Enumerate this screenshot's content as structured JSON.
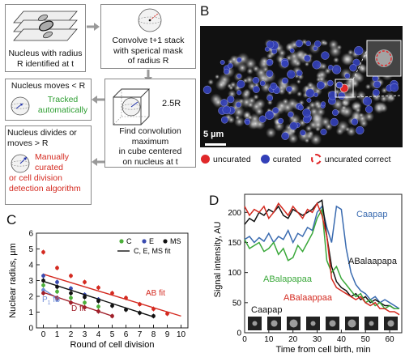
{
  "panels": {
    "a": "A",
    "b": "B",
    "c": "C",
    "d": "D"
  },
  "flow": {
    "box1": [
      "Nucleus with radius",
      "R identified at t"
    ],
    "box2": [
      "Convolve t+1 stack",
      "with sperical mask",
      "of radius R"
    ],
    "box3_title": "Nucleus moves < R",
    "box3_status": [
      "Tracked",
      "automatically"
    ],
    "box4_dim": "2.5R",
    "box4_text": [
      "Find convolution",
      "maximum",
      "in cube centered",
      "on nucleus at t"
    ],
    "box5_title": [
      "Nucleus divides or",
      "moves > R"
    ],
    "box5_status": [
      "Manually",
      "curated",
      "or cell division",
      "detection algorithm"
    ]
  },
  "micrograph": {
    "scale_label": "5 µm",
    "legend": {
      "uncurated": "uncurated",
      "curated": "curated",
      "uncurated_correct": "uncurated correct"
    },
    "colors": {
      "uncurated": "#e0282a",
      "curated": "#3340b8"
    }
  },
  "chart_data": [
    {
      "type": "scatter",
      "xlabel": "Round of cell division",
      "ylabel": "Nuclear radius, µm",
      "xlim": [
        -0.5,
        10.5
      ],
      "ylim": [
        0,
        6
      ],
      "xticks": [
        0,
        1,
        2,
        3,
        4,
        5,
        6,
        7,
        8,
        9,
        10
      ],
      "yticks": [
        0,
        1,
        2,
        3,
        4,
        5,
        6
      ],
      "legend": {
        "c": "C",
        "e": "E",
        "ms": "MS",
        "fit": "C, E, MS fit"
      },
      "annotations": {
        "ab_fit": "AB fit",
        "p_fit": "P",
        "p_sub": "1",
        "p_fit_suffix": " fit",
        "d_fit": "D fit"
      },
      "series": [
        {
          "name": "AB",
          "color": "#d42a20",
          "x": [
            0,
            1,
            2,
            3,
            4,
            5,
            6,
            7,
            8,
            9
          ],
          "y": [
            4.8,
            3.8,
            3.3,
            2.9,
            2.55,
            2.2,
            1.9,
            1.5,
            1.2,
            0.9
          ],
          "fit": [
            [
              0,
              3.4
            ],
            [
              10,
              0.75
            ]
          ]
        },
        {
          "name": "C",
          "color": "#4caf3a",
          "x": [
            0,
            1,
            2,
            3,
            4
          ],
          "y": [
            2.7,
            2.3,
            1.9,
            1.6,
            1.35
          ]
        },
        {
          "name": "E",
          "color": "#3a4bb0",
          "x": [
            0,
            1,
            2,
            3,
            4
          ],
          "y": [
            3.3,
            2.9,
            2.5,
            2.1,
            1.8
          ]
        },
        {
          "name": "MS",
          "color": "#111111",
          "x": [
            0,
            1,
            2,
            3,
            4,
            5,
            6,
            7,
            8
          ],
          "y": [
            3.0,
            2.6,
            2.2,
            1.95,
            1.7,
            1.4,
            1.15,
            0.95,
            0.75
          ],
          "fit": [
            [
              0,
              2.95
            ],
            [
              8,
              0.7
            ]
          ]
        },
        {
          "name": "P",
          "color": "#6d8bd6",
          "x": [
            0,
            1
          ],
          "y": [
            2.4,
            1.8
          ],
          "fit": [
            [
              0,
              2.45
            ],
            [
              1.2,
              1.75
            ]
          ]
        },
        {
          "name": "D",
          "color": "#a0202a",
          "x": [
            0,
            1,
            2,
            3,
            4,
            5
          ],
          "y": [
            2.2,
            1.9,
            1.6,
            1.3,
            1.05,
            0.75
          ],
          "fit": [
            [
              0,
              2.25
            ],
            [
              5,
              0.75
            ]
          ]
        }
      ]
    },
    {
      "type": "line",
      "xlabel": "Time from cell birth, min",
      "ylabel": "Signal intensity, AU",
      "xlim": [
        0,
        65
      ],
      "ylim": [
        0,
        230
      ],
      "xticks": [
        0,
        10,
        20,
        30,
        40,
        50,
        60
      ],
      "yticks": [
        0,
        50,
        100,
        150,
        200
      ],
      "series": [
        {
          "name": "Caapap",
          "color": "#3a6bb0",
          "x": [
            0,
            2,
            4,
            6,
            8,
            10,
            12,
            14,
            16,
            18,
            20,
            22,
            24,
            26,
            28,
            30,
            32,
            34,
            36,
            38,
            40,
            42,
            44,
            46,
            48,
            50,
            52,
            54,
            56,
            58,
            60,
            62,
            64
          ],
          "y": [
            155,
            160,
            150,
            158,
            152,
            165,
            150,
            160,
            155,
            170,
            150,
            165,
            160,
            175,
            170,
            200,
            210,
            175,
            150,
            210,
            205,
            140,
            100,
            80,
            70,
            65,
            55,
            60,
            50,
            55,
            50,
            45,
            40
          ]
        },
        {
          "name": "ABalaapapa",
          "color": "#111111",
          "x": [
            0,
            2,
            4,
            6,
            8,
            10,
            12,
            14,
            16,
            18,
            20,
            22,
            24,
            26,
            28,
            30,
            32,
            34,
            36,
            38,
            40,
            42,
            44,
            46,
            48,
            50,
            52,
            54,
            56,
            58,
            60,
            62,
            64
          ],
          "y": [
            180,
            190,
            185,
            200,
            195,
            205,
            200,
            210,
            195,
            190,
            205,
            200,
            195,
            200,
            205,
            215,
            220,
            160,
            110,
            85,
            75,
            70,
            60,
            65,
            55,
            60,
            50,
            55,
            50,
            45,
            45,
            40,
            40
          ]
        },
        {
          "name": "ABalapapaa",
          "color": "#3aa83a",
          "x": [
            0,
            2,
            4,
            6,
            8,
            10,
            12,
            14,
            16,
            18,
            20,
            22,
            24,
            26,
            28,
            30,
            32,
            34,
            36,
            38,
            40,
            42,
            44,
            46,
            48,
            50,
            52,
            54,
            56,
            58,
            60,
            62,
            64
          ],
          "y": [
            155,
            140,
            145,
            150,
            135,
            140,
            150,
            130,
            140,
            120,
            125,
            145,
            135,
            150,
            165,
            190,
            205,
            120,
            100,
            110,
            90,
            80,
            70,
            60,
            65,
            50,
            55,
            45,
            50,
            40,
            45,
            40,
            40
          ]
        },
        {
          "name": "ABalaappaa",
          "color": "#d42a20",
          "x": [
            0,
            2,
            4,
            6,
            8,
            10,
            12,
            14,
            16,
            18,
            20,
            22,
            24,
            26,
            28,
            30,
            32,
            34,
            36,
            38,
            40,
            42,
            44,
            46,
            48,
            50,
            52,
            54,
            56,
            58,
            60,
            62,
            64
          ],
          "y": [
            210,
            195,
            205,
            200,
            210,
            190,
            200,
            215,
            205,
            195,
            210,
            200,
            190,
            205,
            200,
            215,
            195,
            160,
            90,
            75,
            70,
            65,
            60,
            55,
            60,
            50,
            45,
            50,
            40,
            40,
            35,
            35,
            30
          ]
        }
      ],
      "inline_labels": {
        "bottom_left": "Caapap"
      }
    }
  ]
}
